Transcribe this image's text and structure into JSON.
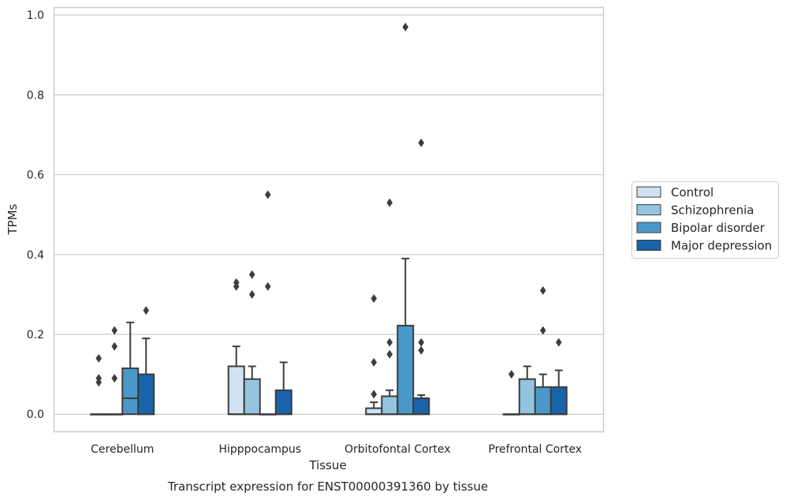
{
  "chart_data": {
    "type": "box",
    "caption": "Transcript expression for ENST00000391360 by tissue",
    "xlabel": "Tissue",
    "ylabel": "TPMs",
    "ylim": [
      -0.045,
      1.02
    ],
    "yticks": [
      "0.0",
      "0.2",
      "0.4",
      "0.6",
      "0.8",
      "1.0"
    ],
    "yticks_values": [
      0.0,
      0.2,
      0.4,
      0.6,
      0.8,
      1.0
    ],
    "grid": true,
    "legend_position": "right",
    "categories": [
      "Cerebellum",
      "Hipppocampus",
      "Orbitofontal Cortex",
      "Prefrontal Cortex"
    ],
    "series": [
      {
        "name": "Control",
        "color": "#d0e1f2",
        "boxes": [
          {
            "q1": 0.0,
            "median": 0.0,
            "q3": 0.0,
            "whislo": 0.0,
            "whishi": 0.0,
            "fliers": [
              0.14,
              0.09,
              0.08
            ]
          },
          {
            "q1": 0.0,
            "median": 0.0,
            "q3": 0.12,
            "whislo": 0.0,
            "whishi": 0.17,
            "fliers": [
              0.33,
              0.32
            ]
          },
          {
            "q1": 0.0,
            "median": 0.0,
            "q3": 0.015,
            "whislo": 0.0,
            "whishi": 0.03,
            "fliers": [
              0.29,
              0.13,
              0.05
            ]
          },
          {
            "q1": 0.0,
            "median": 0.0,
            "q3": 0.0,
            "whislo": 0.0,
            "whishi": 0.0,
            "fliers": [
              0.1
            ]
          }
        ]
      },
      {
        "name": "Schizophrenia",
        "color": "#94c4df",
        "boxes": [
          {
            "q1": 0.0,
            "median": 0.0,
            "q3": 0.0,
            "whislo": 0.0,
            "whishi": 0.0,
            "fliers": [
              0.21,
              0.17,
              0.09
            ]
          },
          {
            "q1": 0.0,
            "median": 0.0,
            "q3": 0.088,
            "whislo": 0.0,
            "whishi": 0.12,
            "fliers": [
              0.35,
              0.3
            ]
          },
          {
            "q1": 0.0,
            "median": 0.0,
            "q3": 0.045,
            "whislo": 0.0,
            "whishi": 0.06,
            "fliers": [
              0.53,
              0.18,
              0.15
            ]
          },
          {
            "q1": 0.0,
            "median": 0.0,
            "q3": 0.088,
            "whislo": 0.0,
            "whishi": 0.12,
            "fliers": []
          }
        ]
      },
      {
        "name": "Bipolar disorder",
        "color": "#4a98c9",
        "boxes": [
          {
            "q1": 0.0,
            "median": 0.04,
            "q3": 0.115,
            "whislo": 0.0,
            "whishi": 0.23,
            "fliers": []
          },
          {
            "q1": 0.0,
            "median": 0.0,
            "q3": 0.0,
            "whislo": 0.0,
            "whishi": 0.0,
            "fliers": [
              0.55,
              0.32
            ]
          },
          {
            "q1": 0.0,
            "median": 0.0,
            "q3": 0.222,
            "whislo": 0.0,
            "whishi": 0.39,
            "fliers": [
              0.97
            ]
          },
          {
            "q1": 0.0,
            "median": 0.0,
            "q3": 0.068,
            "whislo": 0.0,
            "whishi": 0.1,
            "fliers": [
              0.31,
              0.21
            ]
          }
        ]
      },
      {
        "name": "Major depression",
        "color": "#1764ab",
        "boxes": [
          {
            "q1": 0.0,
            "median": 0.0,
            "q3": 0.1,
            "whislo": 0.0,
            "whishi": 0.19,
            "fliers": [
              0.26
            ]
          },
          {
            "q1": 0.0,
            "median": 0.0,
            "q3": 0.06,
            "whislo": 0.0,
            "whishi": 0.13,
            "fliers": []
          },
          {
            "q1": 0.0,
            "median": 0.0,
            "q3": 0.04,
            "whislo": 0.0,
            "whishi": 0.048,
            "fliers": [
              0.68,
              0.18,
              0.16
            ]
          },
          {
            "q1": 0.0,
            "median": 0.0,
            "q3": 0.068,
            "whislo": 0.0,
            "whishi": 0.11,
            "fliers": [
              0.18
            ]
          }
        ]
      }
    ]
  }
}
